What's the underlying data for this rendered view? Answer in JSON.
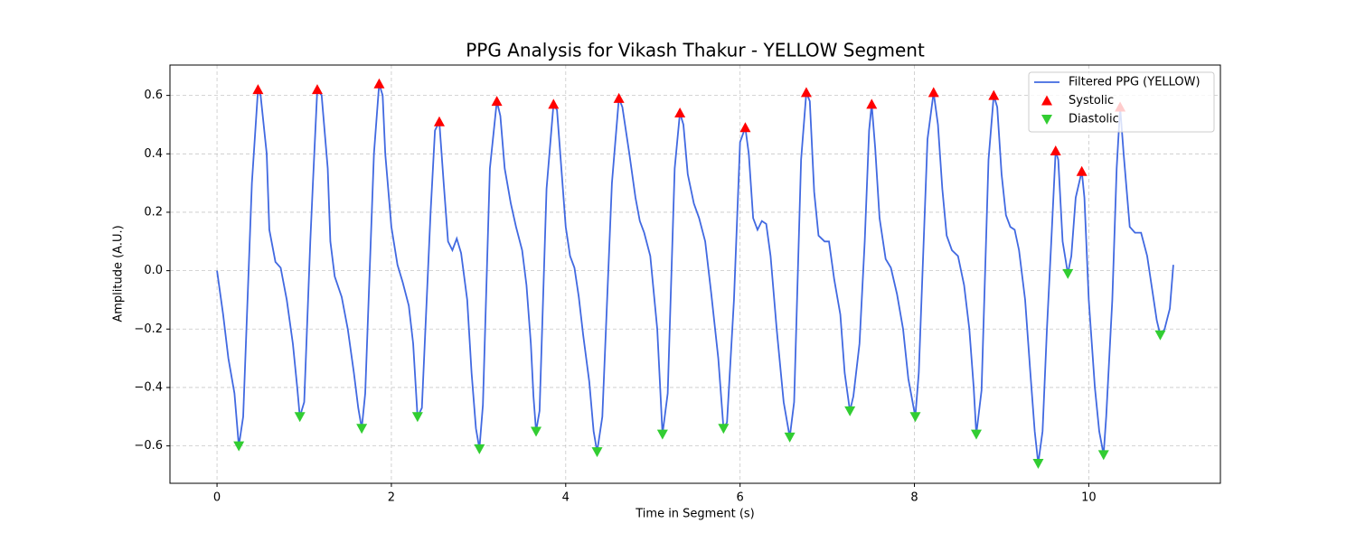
{
  "chart_data": {
    "type": "line",
    "title": "PPG Analysis for Vikash Thakur - YELLOW Segment",
    "x_label": "Time in Segment (s)",
    "y_label": "Amplitude (A.U.)",
    "xlim": [
      -0.54,
      11.51
    ],
    "ylim": [
      -0.728,
      0.704
    ],
    "xticks": [
      0,
      2,
      4,
      6,
      8,
      10
    ],
    "yticks": [
      {
        "value": -0.6,
        "label": "−0.6"
      },
      {
        "value": -0.4,
        "label": "−0.4"
      },
      {
        "value": -0.2,
        "label": "−0.2"
      },
      {
        "value": 0,
        "label": "0.0"
      },
      0.2,
      0.4,
      0.6
    ],
    "grid": true,
    "legend": "upper right",
    "series": [
      {
        "name": "Filtered PPG (YELLOW)",
        "type": "line",
        "color": "#4169e1",
        "x": [
          0,
          0.07,
          0.13,
          0.2,
          0.25,
          0.3,
          0.4,
          0.47,
          0.5,
          0.57,
          0.6,
          0.67,
          0.73,
          0.8,
          0.87,
          0.92,
          0.95,
          1.0,
          1.07,
          1.1,
          1.15,
          1.2,
          1.27,
          1.3,
          1.35,
          1.43,
          1.5,
          1.57,
          1.62,
          1.66,
          1.7,
          1.8,
          1.86,
          1.9,
          1.93,
          2.0,
          2.07,
          2.13,
          2.2,
          2.25,
          2.3,
          2.35,
          2.45,
          2.5,
          2.55,
          2.6,
          2.65,
          2.7,
          2.75,
          2.8,
          2.87,
          2.92,
          2.97,
          3.01,
          3.05,
          3.13,
          3.21,
          3.25,
          3.3,
          3.37,
          3.43,
          3.5,
          3.55,
          3.6,
          3.63,
          3.66,
          3.7,
          3.78,
          3.86,
          3.9,
          3.95,
          4.0,
          4.05,
          4.1,
          4.15,
          4.2,
          4.27,
          4.32,
          4.36,
          4.42,
          4.53,
          4.61,
          4.65,
          4.73,
          4.8,
          4.85,
          4.9,
          4.97,
          5.05,
          5.1,
          5.11,
          5.17,
          5.25,
          5.31,
          5.35,
          5.4,
          5.47,
          5.53,
          5.6,
          5.67,
          5.75,
          5.81,
          5.85,
          5.93,
          6.0,
          6.06,
          6.1,
          6.15,
          6.2,
          6.25,
          6.3,
          6.35,
          6.42,
          6.5,
          6.57,
          6.62,
          6.7,
          6.76,
          6.8,
          6.85,
          6.9,
          6.97,
          7.02,
          7.08,
          7.15,
          7.2,
          7.26,
          7.3,
          7.37,
          7.43,
          7.48,
          7.51,
          7.55,
          7.6,
          7.67,
          7.73,
          7.8,
          7.87,
          7.93,
          8.01,
          8.05,
          8.15,
          8.22,
          8.27,
          8.32,
          8.37,
          8.43,
          8.5,
          8.57,
          8.63,
          8.68,
          8.71,
          8.77,
          8.85,
          8.91,
          8.95,
          9.0,
          9.05,
          9.1,
          9.15,
          9.2,
          9.27,
          9.33,
          9.38,
          9.42,
          9.47,
          9.52,
          9.57,
          9.62,
          9.65,
          9.7,
          9.76,
          9.8,
          9.85,
          9.92,
          9.95,
          10.0,
          10.07,
          10.12,
          10.17,
          10.2,
          10.27,
          10.32,
          10.36,
          10.4,
          10.47,
          10.53,
          10.6,
          10.67,
          10.73,
          10.78,
          10.82,
          10.87,
          10.93,
          10.97
        ],
        "values": [
          0,
          -0.15,
          -0.3,
          -0.42,
          -0.6,
          -0.5,
          0.3,
          0.62,
          0.6,
          0.4,
          0.14,
          0.03,
          0.01,
          -0.1,
          -0.25,
          -0.4,
          -0.5,
          -0.45,
          0.1,
          0.3,
          0.62,
          0.6,
          0.35,
          0.1,
          -0.02,
          -0.09,
          -0.2,
          -0.35,
          -0.47,
          -0.54,
          -0.42,
          0.4,
          0.64,
          0.6,
          0.4,
          0.15,
          0.02,
          -0.04,
          -0.12,
          -0.25,
          -0.5,
          -0.47,
          0.2,
          0.48,
          0.51,
          0.3,
          0.1,
          0.07,
          0.11,
          0.06,
          -0.1,
          -0.35,
          -0.54,
          -0.61,
          -0.46,
          0.35,
          0.58,
          0.53,
          0.35,
          0.23,
          0.15,
          0.07,
          -0.05,
          -0.25,
          -0.43,
          -0.55,
          -0.48,
          0.28,
          0.57,
          0.55,
          0.35,
          0.15,
          0.05,
          0.01,
          -0.09,
          -0.22,
          -0.38,
          -0.55,
          -0.62,
          -0.5,
          0.3,
          0.59,
          0.56,
          0.4,
          0.25,
          0.17,
          0.13,
          0.05,
          -0.2,
          -0.5,
          -0.56,
          -0.42,
          0.35,
          0.54,
          0.5,
          0.33,
          0.23,
          0.18,
          0.1,
          -0.08,
          -0.3,
          -0.54,
          -0.52,
          -0.1,
          0.44,
          0.49,
          0.4,
          0.18,
          0.14,
          0.17,
          0.16,
          0.05,
          -0.2,
          -0.45,
          -0.57,
          -0.45,
          0.38,
          0.61,
          0.58,
          0.27,
          0.12,
          0.1,
          0.1,
          -0.03,
          -0.15,
          -0.35,
          -0.48,
          -0.43,
          -0.25,
          0.1,
          0.48,
          0.57,
          0.42,
          0.18,
          0.04,
          0.01,
          -0.08,
          -0.2,
          -0.37,
          -0.5,
          -0.35,
          0.45,
          0.61,
          0.5,
          0.28,
          0.12,
          0.07,
          0.05,
          -0.05,
          -0.2,
          -0.4,
          -0.56,
          -0.41,
          0.38,
          0.6,
          0.56,
          0.33,
          0.19,
          0.15,
          0.14,
          0.07,
          -0.1,
          -0.35,
          -0.55,
          -0.66,
          -0.55,
          -0.2,
          0.1,
          0.41,
          0.38,
          0.1,
          -0.01,
          0.05,
          0.25,
          0.34,
          0.25,
          -0.1,
          -0.4,
          -0.55,
          -0.63,
          -0.5,
          -0.1,
          0.35,
          0.56,
          0.4,
          0.15,
          0.13,
          0.13,
          0.05,
          -0.07,
          -0.17,
          -0.22,
          -0.2,
          -0.13,
          0.02
        ]
      },
      {
        "name": "Systolic",
        "type": "scatter",
        "marker": "triangle-up",
        "color": "#ff0000",
        "x": [
          0.47,
          1.15,
          1.86,
          2.55,
          3.21,
          3.86,
          4.61,
          5.31,
          6.06,
          6.76,
          7.51,
          8.22,
          8.91,
          9.62,
          9.92,
          10.36
        ],
        "values": [
          0.62,
          0.62,
          0.64,
          0.51,
          0.58,
          0.57,
          0.59,
          0.54,
          0.49,
          0.61,
          0.57,
          0.61,
          0.6,
          0.41,
          0.34,
          0.56
        ]
      },
      {
        "name": "Diastolic",
        "type": "scatter",
        "marker": "triangle-down",
        "color": "#32cd32",
        "x": [
          0.25,
          0.95,
          1.66,
          2.3,
          3.01,
          3.66,
          4.36,
          5.11,
          5.81,
          6.57,
          7.26,
          8.01,
          8.71,
          9.42,
          9.76,
          10.17,
          10.82
        ],
        "values": [
          -0.6,
          -0.5,
          -0.54,
          -0.5,
          -0.61,
          -0.55,
          -0.62,
          -0.56,
          -0.54,
          -0.57,
          -0.48,
          -0.5,
          -0.56,
          -0.66,
          -0.01,
          -0.63,
          -0.22
        ]
      }
    ]
  }
}
